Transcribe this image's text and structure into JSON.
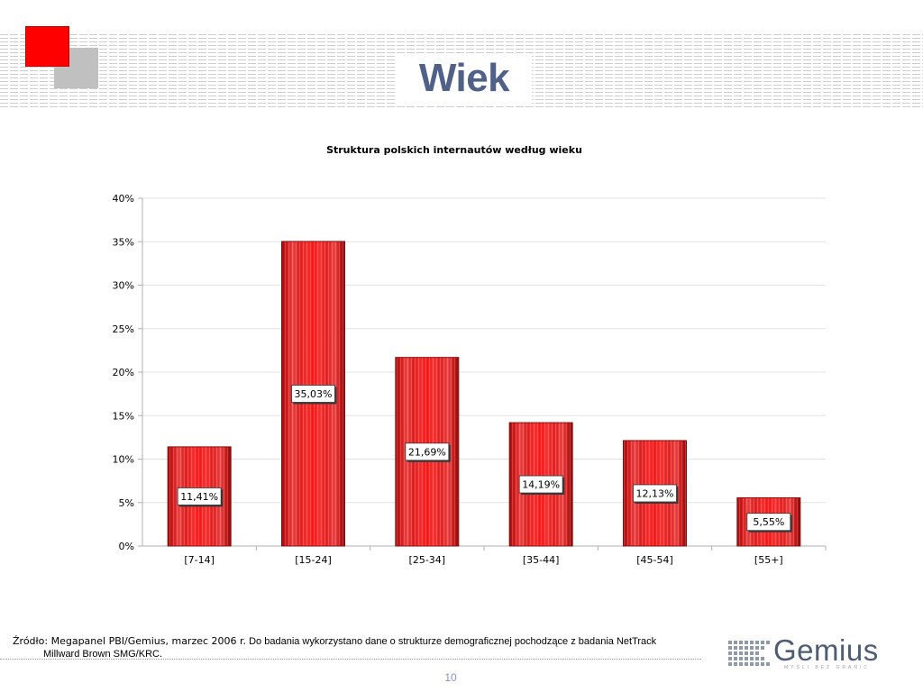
{
  "header": {
    "title": "Wiek"
  },
  "chart_data": {
    "type": "bar",
    "title": "Struktura polskich internautów według wieku",
    "categories": [
      "[7-14]",
      "[15-24]",
      "[25-34]",
      "[35-44]",
      "[45-54]",
      "[55+]"
    ],
    "values": [
      11.41,
      35.03,
      21.69,
      14.19,
      12.13,
      5.55
    ],
    "data_labels": [
      "11,41%",
      "35,03%",
      "21,69%",
      "14,19%",
      "12,13%",
      "5,55%"
    ],
    "y_ticks": [
      "0%",
      "5%",
      "10%",
      "15%",
      "20%",
      "25%",
      "30%",
      "35%",
      "40%"
    ],
    "ylim": [
      0,
      40
    ],
    "xlabel": "",
    "ylabel": "",
    "grid": true,
    "bar_color": "#e52222"
  },
  "footer": {
    "source_lead": "Źródło: Megapanel PBI/Gemius, marzec 2006 r.",
    "source_rest": "Do badania wykorzystano dane o strukturze demograficznej pochodzące z badania NetTrack",
    "source_line2": "Millward Brown SMG/KRC.",
    "page_number": "10"
  },
  "logo": {
    "name": "Gemius",
    "tagline": "MYŚLI BEZ GRANIC"
  },
  "colors": {
    "title": "#4f6188",
    "logo_red": "#ff0000",
    "logo_grey": "#c0c0c0",
    "page_number": "#8a8fd0"
  }
}
